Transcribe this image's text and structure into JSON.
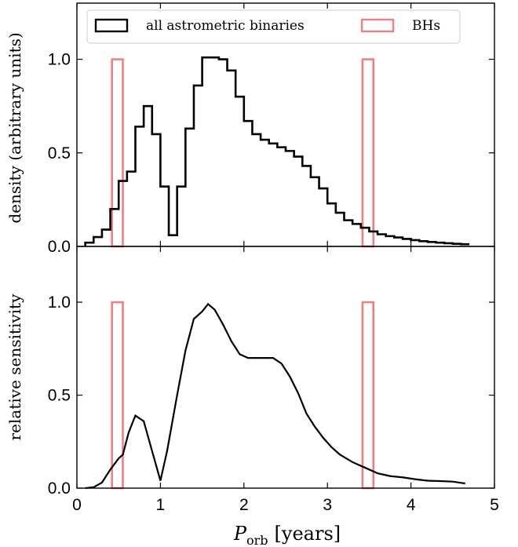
{
  "chart_data": [
    {
      "type": "line",
      "panel": "top",
      "title": "",
      "xlabel": "",
      "ylabel": "density (arbitrary units)",
      "xlim": [
        0,
        5
      ],
      "ylim": [
        0,
        1.3
      ],
      "yticks": [
        0.0,
        0.5,
        1.0
      ],
      "ytick_labels": [
        "0.0",
        "0.5",
        "1.0"
      ],
      "legend_position": "top",
      "series": [
        {
          "name": "all astrometric binaries",
          "style": "step",
          "color": "#000000",
          "bin_width": 0.1,
          "edges_start": 0.1,
          "values": [
            0.02,
            0.05,
            0.09,
            0.2,
            0.35,
            0.4,
            0.64,
            0.75,
            0.6,
            0.32,
            0.06,
            0.32,
            0.63,
            0.86,
            1.01,
            1.01,
            1.0,
            0.94,
            0.8,
            0.67,
            0.6,
            0.57,
            0.55,
            0.53,
            0.51,
            0.48,
            0.43,
            0.37,
            0.31,
            0.23,
            0.18,
            0.14,
            0.12,
            0.1,
            0.08,
            0.065,
            0.055,
            0.048,
            0.04,
            0.034,
            0.028,
            0.024,
            0.02,
            0.017,
            0.014,
            0.012
          ]
        },
        {
          "name": "BHs",
          "style": "bars",
          "color": "#f08080",
          "bars": [
            {
              "x0": 0.42,
              "x1": 0.55,
              "value": 1.0
            },
            {
              "x0": 3.42,
              "x1": 3.55,
              "value": 1.0
            }
          ]
        }
      ]
    },
    {
      "type": "line",
      "panel": "bottom",
      "title": "",
      "xlabel": "P_orb [years]",
      "xlabel_main": "P",
      "xlabel_sub": "orb",
      "xlabel_units": "[years]",
      "ylabel": "relative sensitivity",
      "xlim": [
        0,
        5
      ],
      "ylim": [
        0,
        1.3
      ],
      "xticks": [
        0,
        1,
        2,
        3,
        4,
        5
      ],
      "xtick_labels": [
        "0",
        "1",
        "2",
        "3",
        "4",
        "5"
      ],
      "yticks": [
        0.0,
        0.5,
        1.0
      ],
      "ytick_labels": [
        "0.0",
        "0.5",
        "1.0"
      ],
      "series": [
        {
          "style": "line",
          "color": "#000000",
          "x": [
            0.1,
            0.2,
            0.3,
            0.4,
            0.5,
            0.55,
            0.62,
            0.7,
            0.8,
            0.9,
            1.0,
            1.08,
            1.2,
            1.3,
            1.4,
            1.5,
            1.57,
            1.65,
            1.75,
            1.85,
            1.95,
            2.05,
            2.15,
            2.25,
            2.35,
            2.45,
            2.55,
            2.65,
            2.75,
            2.85,
            2.95,
            3.05,
            3.15,
            3.3,
            3.45,
            3.6,
            3.75,
            3.9,
            4.05,
            4.2,
            4.35,
            4.5,
            4.65
          ],
          "y": [
            0.0,
            0.005,
            0.03,
            0.1,
            0.16,
            0.18,
            0.3,
            0.39,
            0.36,
            0.2,
            0.04,
            0.2,
            0.5,
            0.74,
            0.91,
            0.95,
            0.99,
            0.96,
            0.88,
            0.79,
            0.72,
            0.7,
            0.7,
            0.7,
            0.7,
            0.67,
            0.6,
            0.51,
            0.4,
            0.33,
            0.27,
            0.22,
            0.18,
            0.14,
            0.11,
            0.08,
            0.065,
            0.058,
            0.048,
            0.04,
            0.038,
            0.035,
            0.025
          ]
        },
        {
          "name": "BHs",
          "style": "bars",
          "color": "#f08080",
          "bars": [
            {
              "x0": 0.42,
              "x1": 0.55,
              "value": 1.0
            },
            {
              "x0": 3.42,
              "x1": 3.55,
              "value": 1.0
            }
          ]
        }
      ]
    }
  ]
}
